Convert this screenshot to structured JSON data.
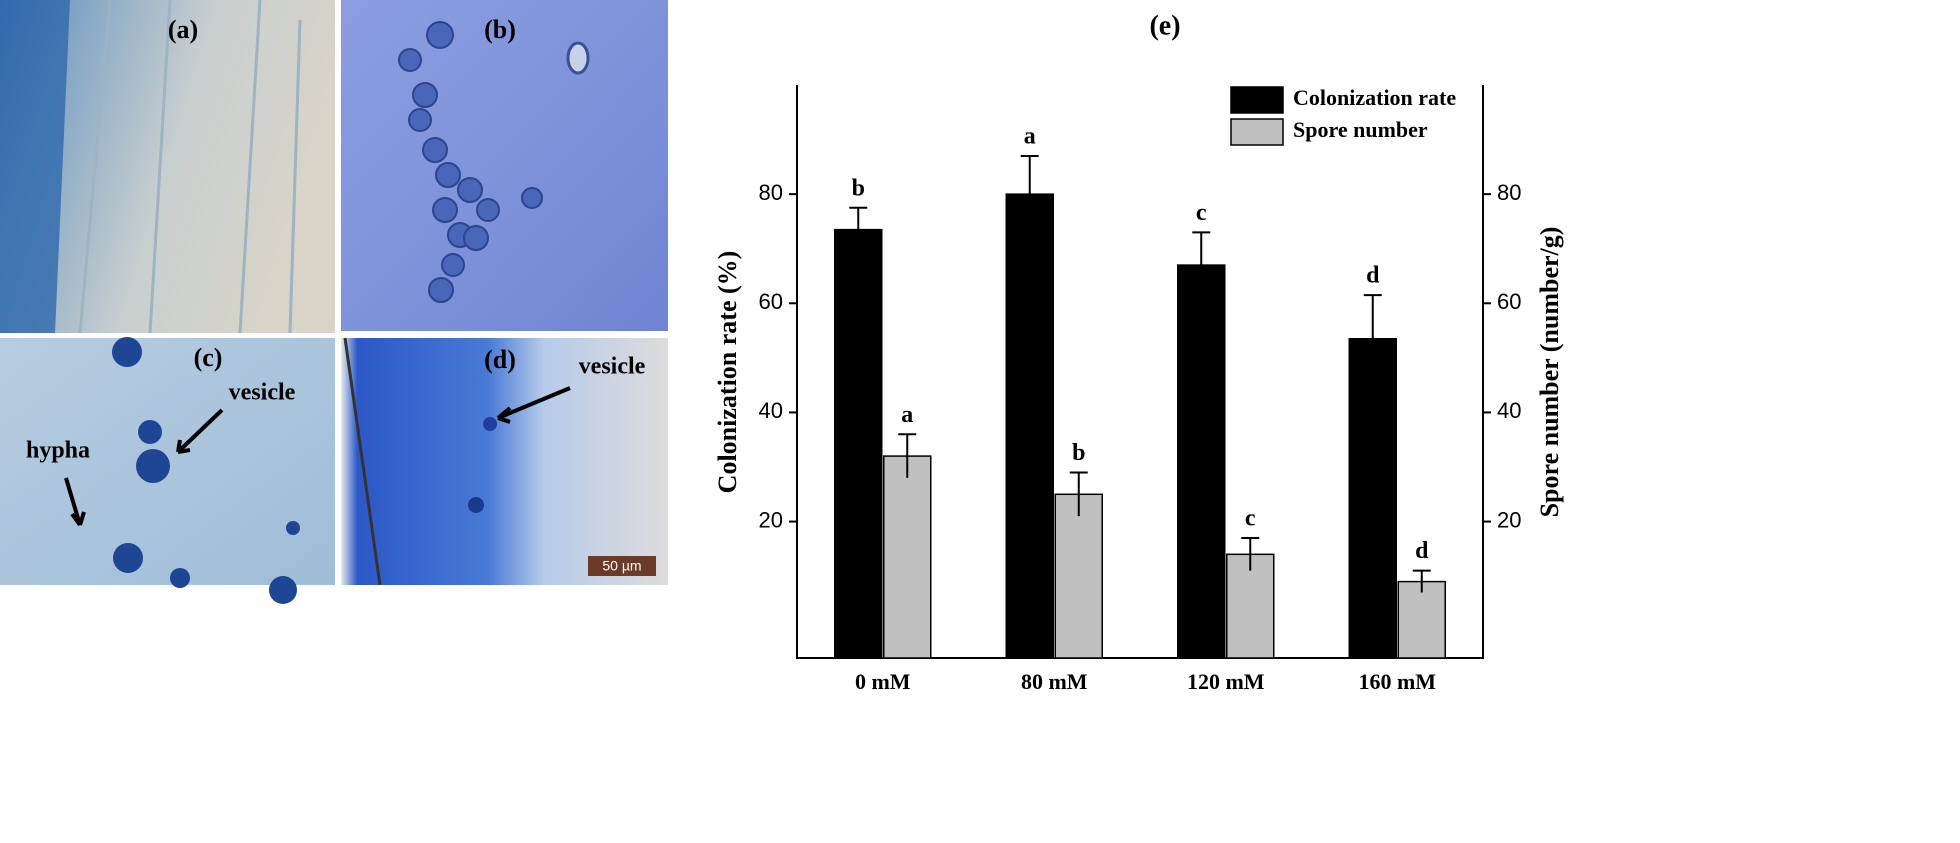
{
  "panels": [
    {
      "label": "(a)"
    },
    {
      "label": "(b)"
    },
    {
      "label": "(c)",
      "annotations": [
        "vesicle",
        "hypha"
      ]
    },
    {
      "label": "(d)",
      "annotations": [
        "vesicle"
      ],
      "scale_bar": "50 µm"
    }
  ],
  "chart_data": {
    "type": "bar",
    "title": "(e)",
    "categories": [
      "0 mM",
      "80 mM",
      "120 mM",
      "160 mM"
    ],
    "ylabel": "Colonization rate (%)",
    "y2label": "Spore number (number/g)",
    "ylim": [
      -5,
      100
    ],
    "yticks": [
      20,
      40,
      60,
      80
    ],
    "y2lim": [
      -5,
      100
    ],
    "y2ticks": [
      20,
      40,
      60,
      80
    ],
    "legend": "upper right",
    "series": [
      {
        "name": "Colonization rate",
        "color": "#000000",
        "values": [
          73.5,
          80,
          67,
          53.5
        ],
        "errors": [
          4,
          7,
          6,
          8
        ],
        "letters": [
          "b",
          "a",
          "c",
          "d"
        ]
      },
      {
        "name": "Spore number",
        "color": "#c0c0c0",
        "axis": "y2",
        "values": [
          32,
          25,
          14,
          9
        ],
        "errors": [
          4,
          4,
          3,
          2
        ],
        "letters": [
          "a",
          "b",
          "c",
          "d"
        ]
      }
    ]
  }
}
